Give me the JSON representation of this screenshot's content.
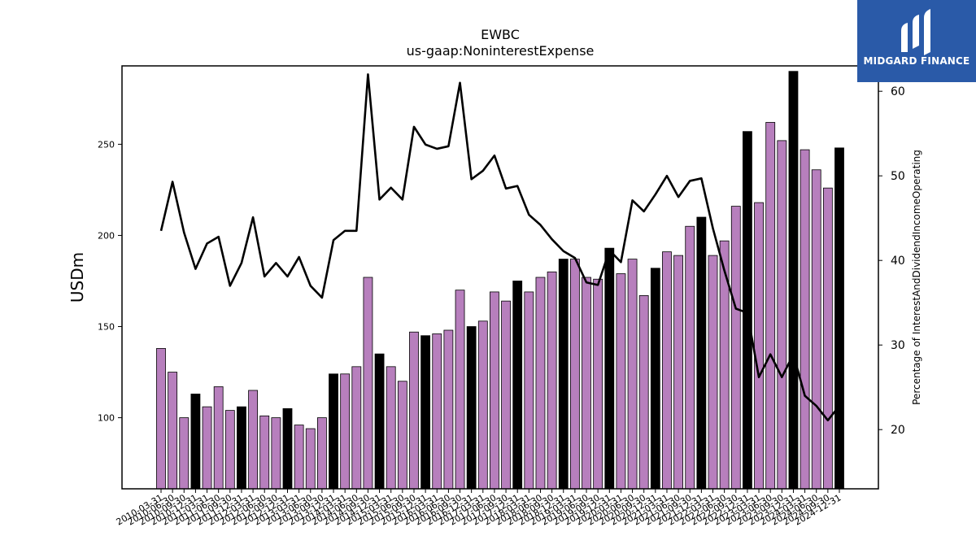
{
  "chart_data": {
    "type": "bar",
    "title": "EWBC",
    "subtitle": "us-gaap:NoninterestExpense",
    "ylabel": "USDm",
    "y2label": "Percentage of InterestAndDividendIncomeOperating",
    "ylim": [
      61,
      293
    ],
    "y2lim": [
      13,
      63
    ],
    "yticks": [
      100,
      150,
      200,
      250
    ],
    "y2ticks": [
      20,
      30,
      40,
      50,
      60
    ],
    "colors": {
      "quarter_bar": "#b77fbd",
      "annual_bar": "#000000",
      "line": "#000000"
    },
    "categories": [
      "2010-03-31",
      "2010-06-30",
      "2010-09-30",
      "2010-12-31",
      "2011-03-31",
      "2011-06-30",
      "2011-09-30",
      "2011-12-31",
      "2012-03-31",
      "2012-06-30",
      "2012-09-30",
      "2012-12-31",
      "2013-03-31",
      "2013-06-30",
      "2013-09-30",
      "2013-12-31",
      "2014-03-31",
      "2014-06-30",
      "2014-09-30",
      "2014-12-31",
      "2015-03-31",
      "2015-06-30",
      "2015-09-30",
      "2015-12-31",
      "2016-03-31",
      "2016-06-30",
      "2016-09-30",
      "2016-12-31",
      "2017-03-31",
      "2017-06-30",
      "2017-09-30",
      "2017-12-31",
      "2018-03-31",
      "2018-06-30",
      "2018-09-30",
      "2018-12-31",
      "2019-03-31",
      "2019-06-30",
      "2019-09-30",
      "2019-12-31",
      "2020-03-31",
      "2020-06-30",
      "2020-09-30",
      "2020-12-31",
      "2021-03-31",
      "2021-06-30",
      "2021-09-30",
      "2021-12-31",
      "2022-03-31",
      "2022-06-30",
      "2022-09-30",
      "2022-12-31",
      "2023-03-31",
      "2023-06-30",
      "2023-09-30",
      "2023-12-31",
      "2024-03-31",
      "2024-06-30",
      "2024-09-30",
      "2024-12-31"
    ],
    "series": [
      {
        "kind": "bar",
        "values": [
          138,
          125,
          100,
          113,
          106,
          117,
          104,
          106,
          115,
          101,
          100,
          105,
          96,
          94,
          100,
          124,
          124,
          128,
          177,
          135,
          128,
          120,
          147,
          145,
          146,
          148,
          170,
          150,
          153,
          169,
          164,
          175,
          169,
          177,
          180,
          187,
          187,
          177,
          176,
          193,
          179,
          187,
          167,
          182,
          191,
          189,
          205,
          210,
          189,
          197,
          216,
          257,
          218,
          262,
          252,
          290,
          247,
          236,
          226,
          248
        ],
        "annual": [
          false,
          false,
          false,
          true,
          false,
          false,
          false,
          true,
          false,
          false,
          false,
          true,
          false,
          false,
          false,
          true,
          false,
          false,
          false,
          true,
          false,
          false,
          false,
          true,
          false,
          false,
          false,
          true,
          false,
          false,
          false,
          true,
          false,
          false,
          false,
          true,
          false,
          false,
          false,
          true,
          false,
          false,
          false,
          true,
          false,
          false,
          false,
          true,
          false,
          false,
          false,
          true,
          false,
          false,
          false,
          true,
          false,
          false,
          false,
          true
        ]
      },
      {
        "kind": "line",
        "axis": "right",
        "values": [
          43.5,
          49.3,
          43.3,
          39.0,
          42.0,
          42.8,
          37.0,
          39.7,
          45.1,
          38.1,
          39.7,
          38.1,
          40.4,
          37.0,
          35.6,
          42.4,
          43.5,
          43.5,
          62.0,
          47.2,
          48.6,
          47.2,
          55.8,
          53.7,
          53.2,
          53.5,
          61.0,
          49.6,
          50.6,
          52.4,
          48.5,
          48.8,
          45.4,
          44.2,
          42.5,
          41.1,
          40.3,
          37.4,
          37.1,
          41.2,
          39.8,
          47.1,
          45.8,
          47.8,
          50.0,
          47.5,
          49.4,
          49.7,
          43.8,
          38.8,
          34.3,
          33.8,
          26.2,
          28.9,
          26.2,
          28.9,
          24.0,
          22.8,
          21.1,
          22.8
        ]
      }
    ]
  },
  "logo": {
    "text": "MIDGARD FINANCE"
  }
}
